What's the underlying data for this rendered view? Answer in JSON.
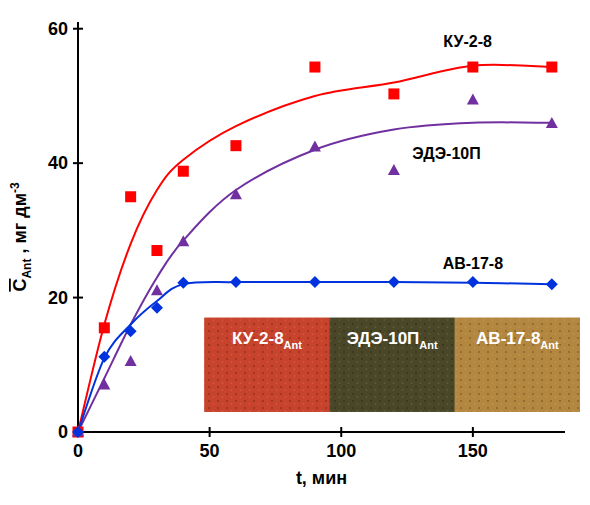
{
  "chart_data": {
    "type": "scatter",
    "xlabel": "t, мин",
    "ylabel": "C",
    "ylabel_sub": "Ant",
    "ylabel_unit": " , мг дм",
    "ylabel_sup": "-3",
    "x": [
      0,
      10,
      20,
      30,
      40,
      60,
      90,
      120,
      150,
      180
    ],
    "xlim": [
      0,
      185
    ],
    "ylim": [
      0,
      61
    ],
    "xticks": [
      0,
      50,
      100,
      150
    ],
    "yticks": [
      0,
      20,
      40,
      60
    ],
    "grid": false,
    "series": [
      {
        "name": "КУ-2-8",
        "color": "#ff0000",
        "marker": "square",
        "values": [
          0,
          15.5,
          35,
          27,
          38.8,
          42.6,
          54.3,
          50.3,
          54.3,
          54.3
        ],
        "fit": [
          0,
          16,
          28,
          36,
          40.5,
          45.5,
          50,
          52,
          54.5,
          54.3
        ]
      },
      {
        "name": "ЭДЭ-10П",
        "color": "#7030a0",
        "marker": "triangle",
        "values": [
          0,
          7,
          10.5,
          21,
          28.3,
          35.3,
          42.4,
          38.9,
          49.4,
          45.9
        ],
        "fit": [
          0,
          8,
          16,
          23,
          28.5,
          36,
          42,
          45,
          46,
          46
        ]
      },
      {
        "name": "АВ-17-8",
        "color": "#0033dd",
        "marker": "diamond",
        "values": [
          0,
          11.2,
          15,
          18.5,
          22.2,
          22.3,
          22.3,
          22.3,
          22.3,
          22
        ],
        "fit": [
          0,
          11,
          16,
          19.5,
          22,
          22.3,
          22.3,
          22.3,
          22.2,
          22
        ]
      }
    ],
    "insets": [
      {
        "label": "КУ-2-8",
        "subscript": "Ant",
        "color": "#c8432c"
      },
      {
        "label": "ЭДЭ-10П",
        "subscript": "Ant",
        "color": "#4a4628"
      },
      {
        "label": "АВ-17-8",
        "subscript": "Ant",
        "color": "#b3873f"
      }
    ]
  }
}
